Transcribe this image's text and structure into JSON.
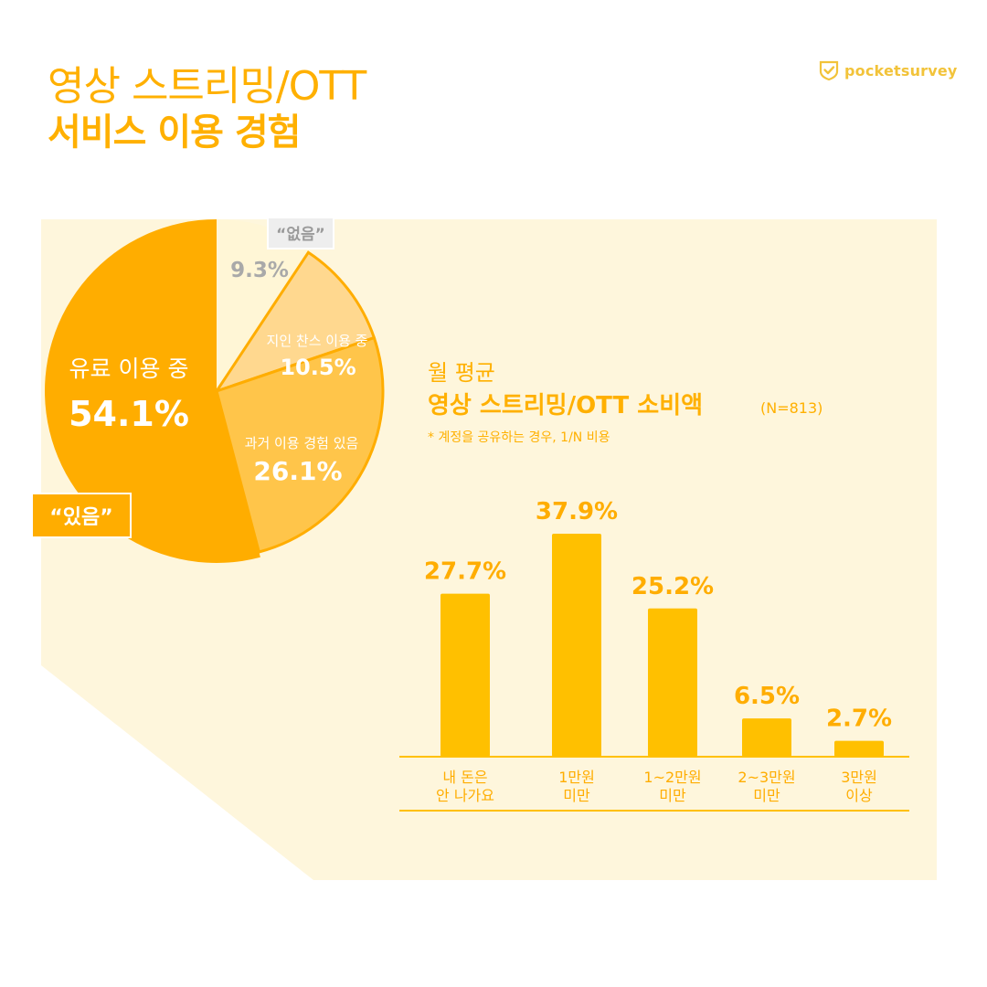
{
  "header": {
    "title_line1": "영상 스트리밍/OTT",
    "title_line2": "서비스 이용 경험",
    "brand": "pocketsurvey",
    "brand_icon": "shield-check-icon"
  },
  "colors": {
    "accent": "#ffb000",
    "paid": "#ffad00",
    "past": "#ffc54a",
    "friend": "#ffd88f",
    "none": "#fff6d6",
    "bar": "#ffc000",
    "panel": "#fef6dc"
  },
  "chart_data": [
    {
      "type": "pie",
      "slices": [
        {
          "label": "유료 이용 중",
          "value": 54.1,
          "value_label": "54.1%",
          "group": "있음"
        },
        {
          "label": "과거 이용 경험 있음",
          "value": 26.1,
          "value_label": "26.1%",
          "group": "있음"
        },
        {
          "label": "지인 찬스 이용 중",
          "value": 10.5,
          "value_label": "10.5%",
          "group": "있음"
        },
        {
          "label": "",
          "value": 9.3,
          "value_label": "9.3%",
          "group": "없음"
        }
      ],
      "group_labels": {
        "yes": "“있음”",
        "no": "“없음”"
      }
    },
    {
      "type": "bar",
      "title_line1": "월 평균",
      "title_line2": "영상 스트리밍/OTT 소비액",
      "sample": "(N=813)",
      "note": "* 계정을 공유하는 경우, 1/N 비용",
      "categories": [
        [
          "내 돈은",
          "안 나가요"
        ],
        [
          "1만원",
          "미만"
        ],
        [
          "1~2만원",
          "미만"
        ],
        [
          "2~3만원",
          "미만"
        ],
        [
          "3만원",
          "이상"
        ]
      ],
      "values": [
        27.7,
        37.9,
        25.2,
        6.5,
        2.7
      ],
      "value_labels": [
        "27.7%",
        "37.9%",
        "25.2%",
        "6.5%",
        "2.7%"
      ]
    }
  ]
}
